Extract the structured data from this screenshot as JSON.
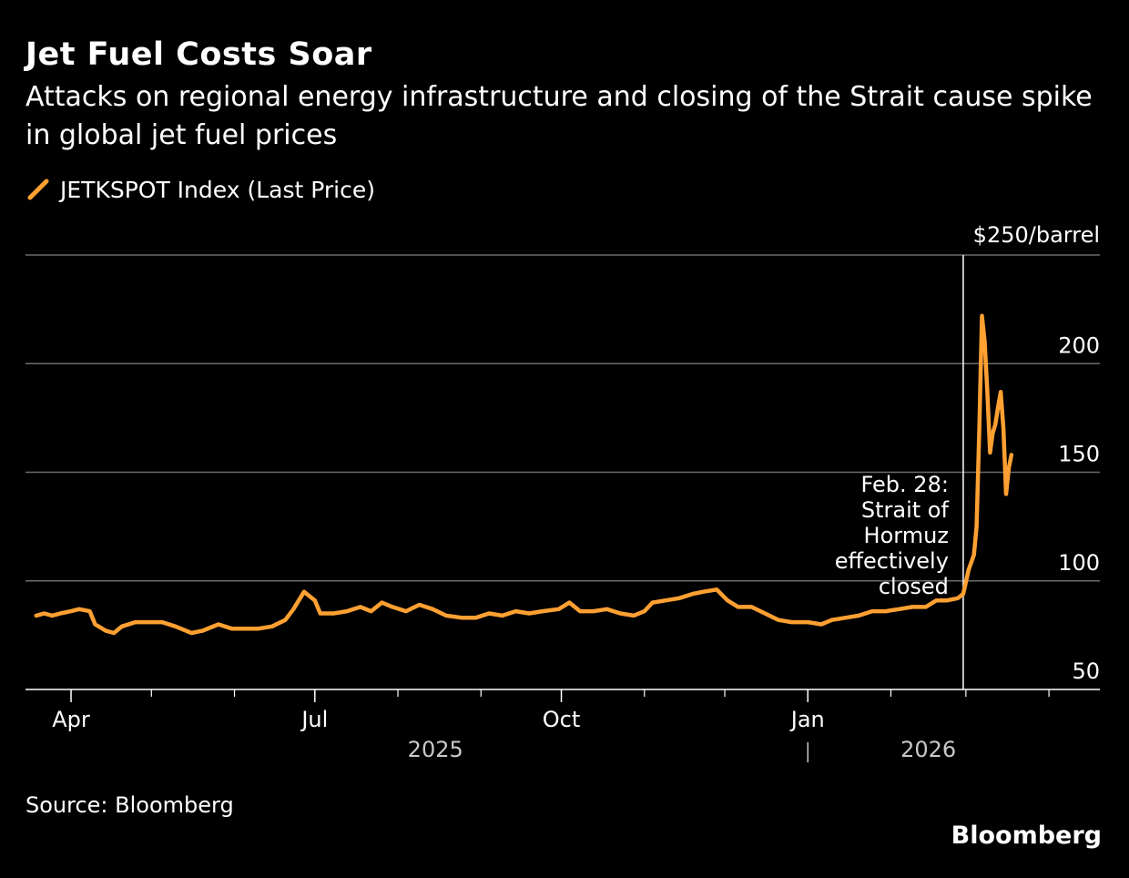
{
  "title": "Jet Fuel Costs Soar",
  "subtitle": "Attacks on regional energy infrastructure and closing of the Strait cause spike in global jet fuel prices",
  "source": "Source: Bloomberg",
  "brand": "Bloomberg",
  "colors": {
    "background": "#000000",
    "series": "#FFA032",
    "grid": "#6b6b6b",
    "text": "#ffffff"
  },
  "chart_data": {
    "type": "line",
    "title": "Jet Fuel Costs Soar",
    "xlabel": "",
    "ylabel": "$250/barrel",
    "ylim": [
      50,
      250
    ],
    "xlim": [
      "2025-03-15",
      "2026-04-20"
    ],
    "y_ticks": [
      {
        "value": 250,
        "label": "$250/barrel"
      },
      {
        "value": 200,
        "label": "200"
      },
      {
        "value": 150,
        "label": "150"
      },
      {
        "value": 100,
        "label": "100"
      },
      {
        "value": 50,
        "label": "50"
      }
    ],
    "x_ticks": [
      {
        "date": "2025-04-01",
        "label": "Apr"
      },
      {
        "date": "2025-07-01",
        "label": "Jul"
      },
      {
        "date": "2025-10-01",
        "label": "Oct"
      },
      {
        "date": "2026-01-01",
        "label": "Jan"
      }
    ],
    "x_minor_ticks": [
      "2025-05-01",
      "2025-06-01",
      "2025-08-01",
      "2025-09-01",
      "2025-11-01",
      "2025-12-01",
      "2026-02-01",
      "2026-03-01",
      "2026-04-01"
    ],
    "year_labels": [
      {
        "label": "2025",
        "date": "2025-08-15"
      },
      {
        "label": "2026",
        "date": "2026-02-15"
      }
    ],
    "year_divider": "2026-01-01",
    "grid": true,
    "legend": {
      "position": "top-left",
      "entries": [
        "JETKSPOT Index (Last Price)"
      ]
    },
    "series": [
      {
        "name": "JETKSPOT Index (Last Price)",
        "color": "#FFA032",
        "points": [
          [
            "2025-03-19",
            84
          ],
          [
            "2025-03-22",
            85
          ],
          [
            "2025-03-25",
            84
          ],
          [
            "2025-03-28",
            85
          ],
          [
            "2025-04-01",
            86
          ],
          [
            "2025-04-04",
            87
          ],
          [
            "2025-04-08",
            86
          ],
          [
            "2025-04-10",
            80
          ],
          [
            "2025-04-14",
            77
          ],
          [
            "2025-04-17",
            76
          ],
          [
            "2025-04-20",
            79
          ],
          [
            "2025-04-25",
            81
          ],
          [
            "2025-04-30",
            81
          ],
          [
            "2025-05-05",
            81
          ],
          [
            "2025-05-10",
            79
          ],
          [
            "2025-05-16",
            76
          ],
          [
            "2025-05-20",
            77
          ],
          [
            "2025-05-26",
            80
          ],
          [
            "2025-05-31",
            78
          ],
          [
            "2025-06-05",
            78
          ],
          [
            "2025-06-10",
            78
          ],
          [
            "2025-06-15",
            79
          ],
          [
            "2025-06-20",
            82
          ],
          [
            "2025-06-23",
            87
          ],
          [
            "2025-06-27",
            95
          ],
          [
            "2025-07-01",
            91
          ],
          [
            "2025-07-03",
            85
          ],
          [
            "2025-07-08",
            85
          ],
          [
            "2025-07-13",
            86
          ],
          [
            "2025-07-18",
            88
          ],
          [
            "2025-07-22",
            86
          ],
          [
            "2025-07-26",
            90
          ],
          [
            "2025-07-30",
            88
          ],
          [
            "2025-08-04",
            86
          ],
          [
            "2025-08-09",
            89
          ],
          [
            "2025-08-14",
            87
          ],
          [
            "2025-08-19",
            84
          ],
          [
            "2025-08-25",
            83
          ],
          [
            "2025-08-30",
            83
          ],
          [
            "2025-09-04",
            85
          ],
          [
            "2025-09-09",
            84
          ],
          [
            "2025-09-14",
            86
          ],
          [
            "2025-09-19",
            85
          ],
          [
            "2025-09-24",
            86
          ],
          [
            "2025-09-30",
            87
          ],
          [
            "2025-10-04",
            90
          ],
          [
            "2025-10-08",
            86
          ],
          [
            "2025-10-13",
            86
          ],
          [
            "2025-10-18",
            87
          ],
          [
            "2025-10-23",
            85
          ],
          [
            "2025-10-28",
            84
          ],
          [
            "2025-11-01",
            86
          ],
          [
            "2025-11-04",
            90
          ],
          [
            "2025-11-09",
            91
          ],
          [
            "2025-11-14",
            92
          ],
          [
            "2025-11-19",
            94
          ],
          [
            "2025-11-23",
            95
          ],
          [
            "2025-11-28",
            96
          ],
          [
            "2025-12-02",
            91
          ],
          [
            "2025-12-06",
            88
          ],
          [
            "2025-12-11",
            88
          ],
          [
            "2025-12-16",
            85
          ],
          [
            "2025-12-21",
            82
          ],
          [
            "2025-12-26",
            81
          ],
          [
            "2026-01-01",
            81
          ],
          [
            "2026-01-06",
            80
          ],
          [
            "2026-01-10",
            82
          ],
          [
            "2026-01-15",
            83
          ],
          [
            "2026-01-20",
            84
          ],
          [
            "2026-01-25",
            86
          ],
          [
            "2026-01-30",
            86
          ],
          [
            "2026-02-04",
            87
          ],
          [
            "2026-02-09",
            88
          ],
          [
            "2026-02-14",
            88
          ],
          [
            "2026-02-18",
            91
          ],
          [
            "2026-02-22",
            91
          ],
          [
            "2026-02-26",
            92
          ],
          [
            "2026-02-28",
            94
          ],
          [
            "2026-03-02",
            105
          ],
          [
            "2026-03-04",
            112
          ],
          [
            "2026-03-05",
            125
          ],
          [
            "2026-03-06",
            170
          ],
          [
            "2026-03-07",
            222
          ],
          [
            "2026-03-08",
            210
          ],
          [
            "2026-03-09",
            187
          ],
          [
            "2026-03-10",
            159
          ],
          [
            "2026-03-11",
            168
          ],
          [
            "2026-03-12",
            172
          ],
          [
            "2026-03-13",
            180
          ],
          [
            "2026-03-14",
            187
          ],
          [
            "2026-03-15",
            170
          ],
          [
            "2026-03-16",
            140
          ],
          [
            "2026-03-17",
            152
          ],
          [
            "2026-03-18",
            158
          ]
        ]
      }
    ],
    "annotations": [
      {
        "date": "2026-02-28",
        "lines": [
          "Feb. 28:",
          "Strait of",
          "Hormuz",
          "effectively",
          "closed"
        ]
      }
    ]
  }
}
